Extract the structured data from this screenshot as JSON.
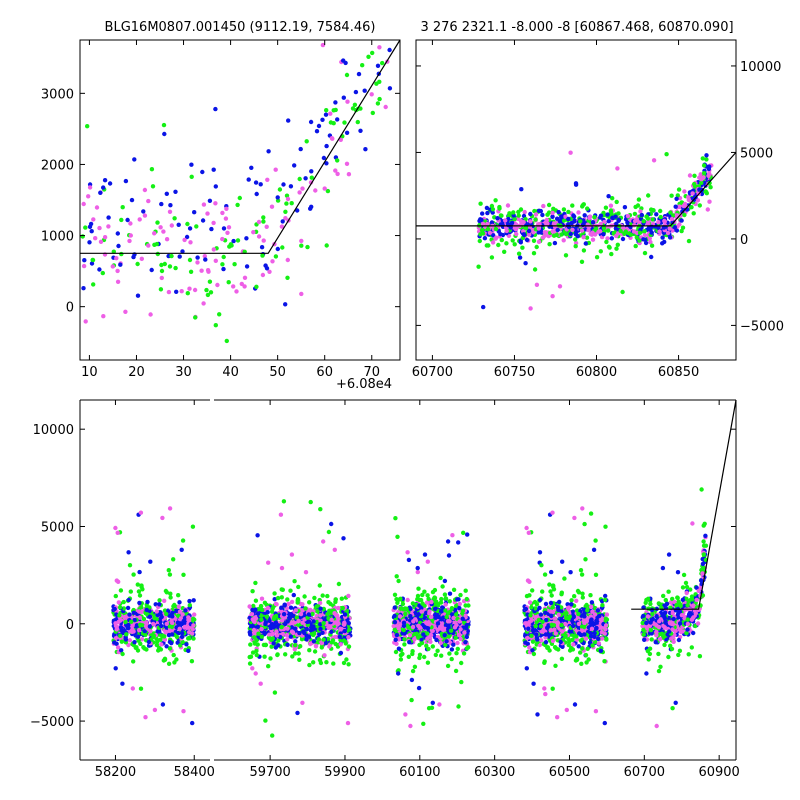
{
  "colors": {
    "blue": "#0a14e6",
    "green": "#14f014",
    "magenta": "#ee5fe6",
    "model": "#000000"
  },
  "chart_data": [
    {
      "type": "scatter",
      "id": "top-left",
      "title": "BLG16M0807.001450 (9112.19, 7584.46)",
      "xlim": [
        8,
        76
      ],
      "ylim": [
        -750,
        3750
      ],
      "xticks": [
        10,
        20,
        30,
        40,
        50,
        60,
        70
      ],
      "yticks": [
        0,
        1000,
        2000,
        3000
      ],
      "x_offset_label": "+6.08e4",
      "model_line": {
        "x": [
          8,
          48,
          76
        ],
        "y": [
          750,
          750,
          3750
        ]
      },
      "grid": false
    },
    {
      "type": "scatter",
      "id": "top-right",
      "title": "3 276 2321.1 -8.000 -8 [60867.468, 60870.090]",
      "xlim": [
        60690,
        60885
      ],
      "ylim": [
        -7000,
        11500
      ],
      "xticks": [
        60700,
        60750,
        60800,
        60850
      ],
      "yticks": [
        -5000,
        0,
        5000,
        10000
      ],
      "y_axis_side": "right",
      "model_line": {
        "x": [
          60690,
          60845,
          60885
        ],
        "y": [
          750,
          750,
          5000
        ]
      },
      "grid": false
    },
    {
      "type": "scatter",
      "id": "bottom",
      "xlim": [
        58110,
        60945
      ],
      "ylim": [
        -7000,
        11500
      ],
      "xticks": [
        58200,
        58400,
        59700,
        59900,
        60100,
        60300,
        60500,
        60700,
        60900
      ],
      "yticks": [
        -5000,
        0,
        5000,
        10000
      ],
      "broken_axis_after": 58400,
      "seasons": [
        {
          "range": [
            58150,
            58420
          ],
          "x_ticks": [
            58200,
            58400
          ]
        },
        {
          "range": [
            59620,
            59930
          ],
          "x_ticks": [
            59700,
            59900
          ]
        },
        {
          "range": [
            60020,
            60320
          ],
          "x_ticks": [
            60100,
            60300
          ]
        },
        {
          "range": [
            60380,
            60620
          ],
          "x_ticks": [
            60500
          ]
        },
        {
          "range": [
            60660,
            60945
          ],
          "x_ticks": [
            60700,
            60900
          ]
        }
      ],
      "model_line": {
        "x": [
          60665,
          60845,
          60945
        ],
        "y": [
          750,
          750,
          11500
        ]
      },
      "grid": false
    }
  ]
}
